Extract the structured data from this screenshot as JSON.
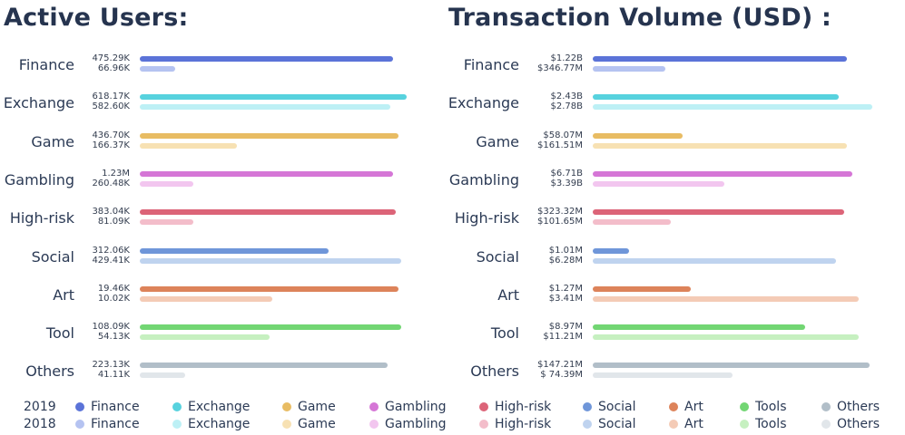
{
  "chart_data": [
    {
      "type": "bar",
      "title": "Active Users:",
      "categories": [
        "Finance",
        "Exchange",
        "Game",
        "Gambling",
        "High-risk",
        "Social",
        "Art",
        "Tool",
        "Others"
      ],
      "series": [
        {
          "name": "2019",
          "values": [
            475290,
            618170,
            436700,
            1230000,
            383040,
            312060,
            19460,
            108090,
            223130
          ],
          "labels": [
            "475.29K",
            "618.17K",
            "436.70K",
            "1.23M",
            "383.04K",
            "312.06K",
            "19.46K",
            "108.09K",
            "223.13K"
          ],
          "bar_fraction": [
            0.94,
            0.99,
            0.96,
            0.94,
            0.95,
            0.7,
            0.96,
            0.97,
            0.92
          ]
        },
        {
          "name": "2018",
          "values": [
            66960,
            582600,
            166370,
            260480,
            81090,
            429410,
            10020,
            54130,
            41110
          ],
          "labels": [
            "66.96K",
            "582.60K",
            "166.37K",
            "260.48K",
            "81.09K",
            "429.41K",
            "10.02K",
            "54.13K",
            "41.11K"
          ],
          "bar_fraction": [
            0.13,
            0.93,
            0.36,
            0.2,
            0.2,
            0.97,
            0.49,
            0.48,
            0.17
          ]
        }
      ]
    },
    {
      "type": "bar",
      "title": "Transaction Volume (USD) :",
      "categories": [
        "Finance",
        "Exchange",
        "Game",
        "Gambling",
        "High-risk",
        "Social",
        "Art",
        "Tool",
        "Others"
      ],
      "series": [
        {
          "name": "2019",
          "values": [
            1220000000,
            2430000000,
            58070000,
            6710000000,
            323320000,
            1010000,
            1270000,
            8970000,
            147210000
          ],
          "labels": [
            "$1.22B",
            "$2.43B",
            "$58.07M",
            "$6.71B",
            "$323.32M",
            "$1.01M",
            "$1.27M",
            "$8.97M",
            "$147.21M"
          ],
          "bar_fraction": [
            0.91,
            0.88,
            0.32,
            0.93,
            0.9,
            0.13,
            0.35,
            0.76,
            0.99
          ]
        },
        {
          "name": "2018",
          "values": [
            346770000,
            2780000000,
            161510000,
            3390000000,
            101650000,
            6280000,
            3410000,
            11210000,
            74390000
          ],
          "labels": [
            "$346.77M",
            "$2.78B",
            "$161.51M",
            "$3.39B",
            "$101.65M",
            "$6.28M",
            "$3.41M",
            "$11.21M",
            "$ 74.39M"
          ],
          "bar_fraction": [
            0.26,
            1.0,
            0.91,
            0.47,
            0.28,
            0.87,
            0.95,
            0.95,
            0.5
          ]
        }
      ]
    }
  ],
  "colors": {
    "2019": [
      "#5b73d8",
      "#57d2de",
      "#e8bc63",
      "#d576d6",
      "#dc6478",
      "#6f96d9",
      "#dd835a",
      "#72d673",
      "#b1bec8"
    ],
    "2018": [
      "#b5c3f1",
      "#bdf0f5",
      "#f7e1b3",
      "#f2c6ef",
      "#f3bdca",
      "#bfd3ef",
      "#f4cbb6",
      "#c6f0c0",
      "#e1e6ea"
    ]
  },
  "legend": {
    "rows": [
      {
        "year": "2019",
        "labels": [
          "Finance",
          "Exchange",
          "Game",
          "Gambling",
          "High-risk",
          "Social",
          "Art",
          "Tools",
          "Others"
        ]
      },
      {
        "year": "2018",
        "labels": [
          "Finance",
          "Exchange",
          "Game",
          "Gambling",
          "High-risk",
          "Social",
          "Art",
          "Tools",
          "Others"
        ]
      }
    ]
  }
}
